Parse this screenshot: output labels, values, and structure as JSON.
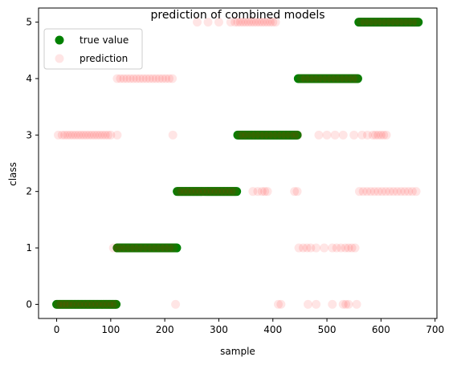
{
  "chart_data": {
    "type": "scatter",
    "title": "prediction of combined models",
    "xlabel": "sample",
    "ylabel": "class",
    "xlim": [
      -33.5,
      703.5
    ],
    "ylim": [
      -0.25,
      5.25
    ],
    "xticks": [
      0,
      100,
      200,
      300,
      400,
      500,
      600,
      700
    ],
    "yticks": [
      0,
      1,
      2,
      3,
      4,
      5
    ],
    "legend": {
      "position": "top-left"
    },
    "colors": {
      "true_value": "#008000",
      "prediction": "#ff0000"
    },
    "series": [
      {
        "name": "true value",
        "marker": "filled-circle",
        "segments": [
          {
            "class": 0,
            "x_start": 0,
            "x_end": 111
          },
          {
            "class": 1,
            "x_start": 112,
            "x_end": 222
          },
          {
            "class": 2,
            "x_start": 223,
            "x_end": 334
          },
          {
            "class": 3,
            "x_start": 335,
            "x_end": 446
          },
          {
            "class": 4,
            "x_start": 447,
            "x_end": 558
          },
          {
            "class": 5,
            "x_start": 559,
            "x_end": 670
          }
        ]
      },
      {
        "name": "prediction",
        "marker": "translucent-circle",
        "alpha": 0.1,
        "points": [
          [
            2,
            0
          ],
          [
            8,
            0
          ],
          [
            14,
            0
          ],
          [
            20,
            0
          ],
          [
            26,
            0
          ],
          [
            33,
            0
          ],
          [
            40,
            0
          ],
          [
            47,
            0
          ],
          [
            54,
            0
          ],
          [
            61,
            0
          ],
          [
            68,
            0
          ],
          [
            75,
            0
          ],
          [
            82,
            0
          ],
          [
            89,
            0
          ],
          [
            96,
            0
          ],
          [
            103,
            0
          ],
          [
            109,
            0
          ],
          [
            3,
            3
          ],
          [
            10,
            3
          ],
          [
            15,
            3
          ],
          [
            20,
            3
          ],
          [
            25,
            3
          ],
          [
            30,
            3
          ],
          [
            35,
            3
          ],
          [
            40,
            3
          ],
          [
            45,
            3
          ],
          [
            50,
            3
          ],
          [
            55,
            3
          ],
          [
            60,
            3
          ],
          [
            65,
            3
          ],
          [
            70,
            3
          ],
          [
            75,
            3
          ],
          [
            80,
            3
          ],
          [
            85,
            3
          ],
          [
            90,
            3
          ],
          [
            95,
            3
          ],
          [
            100,
            3
          ],
          [
            112,
            3
          ],
          [
            105,
            1
          ],
          [
            113,
            1
          ],
          [
            120,
            1
          ],
          [
            128,
            1
          ],
          [
            136,
            1
          ],
          [
            144,
            1
          ],
          [
            152,
            1
          ],
          [
            160,
            1
          ],
          [
            168,
            1
          ],
          [
            176,
            1
          ],
          [
            184,
            1
          ],
          [
            192,
            1
          ],
          [
            200,
            1
          ],
          [
            208,
            1
          ],
          [
            216,
            1
          ],
          [
            112,
            4
          ],
          [
            118,
            4
          ],
          [
            124,
            4
          ],
          [
            130,
            4
          ],
          [
            136,
            4
          ],
          [
            142,
            4
          ],
          [
            148,
            4
          ],
          [
            154,
            4
          ],
          [
            160,
            4
          ],
          [
            166,
            4
          ],
          [
            172,
            4
          ],
          [
            178,
            4
          ],
          [
            184,
            4
          ],
          [
            190,
            4
          ],
          [
            196,
            4
          ],
          [
            202,
            4
          ],
          [
            208,
            4
          ],
          [
            214,
            4
          ],
          [
            215,
            3
          ],
          [
            220,
            0
          ],
          [
            225,
            2
          ],
          [
            232,
            2
          ],
          [
            239,
            2
          ],
          [
            246,
            2
          ],
          [
            253,
            2
          ],
          [
            260,
            2
          ],
          [
            267,
            2
          ],
          [
            274,
            2
          ],
          [
            281,
            2
          ],
          [
            288,
            2
          ],
          [
            295,
            2
          ],
          [
            302,
            2
          ],
          [
            309,
            2
          ],
          [
            316,
            2
          ],
          [
            323,
            2
          ],
          [
            330,
            2
          ],
          [
            260,
            5
          ],
          [
            280,
            5
          ],
          [
            300,
            5
          ],
          [
            322,
            5
          ],
          [
            330,
            5
          ],
          [
            335,
            5
          ],
          [
            340,
            5
          ],
          [
            345,
            5
          ],
          [
            350,
            5
          ],
          [
            355,
            5
          ],
          [
            360,
            5
          ],
          [
            365,
            5
          ],
          [
            370,
            5
          ],
          [
            375,
            5
          ],
          [
            380,
            5
          ],
          [
            385,
            5
          ],
          [
            390,
            5
          ],
          [
            395,
            5
          ],
          [
            400,
            5
          ],
          [
            405,
            5
          ],
          [
            338,
            3
          ],
          [
            345,
            3
          ],
          [
            352,
            3
          ],
          [
            360,
            3
          ],
          [
            368,
            3
          ],
          [
            376,
            3
          ],
          [
            384,
            3
          ],
          [
            392,
            3
          ],
          [
            400,
            3
          ],
          [
            408,
            3
          ],
          [
            416,
            3
          ],
          [
            424,
            3
          ],
          [
            432,
            3
          ],
          [
            440,
            3
          ],
          [
            446,
            3
          ],
          [
            363,
            2
          ],
          [
            372,
            2
          ],
          [
            380,
            2
          ],
          [
            385,
            2
          ],
          [
            390,
            2
          ],
          [
            440,
            2
          ],
          [
            445,
            2
          ],
          [
            410,
            0
          ],
          [
            415,
            0
          ],
          [
            465,
            0
          ],
          [
            480,
            0
          ],
          [
            510,
            0
          ],
          [
            530,
            0
          ],
          [
            535,
            0
          ],
          [
            540,
            0
          ],
          [
            555,
            0
          ],
          [
            448,
            1
          ],
          [
            456,
            1
          ],
          [
            463,
            1
          ],
          [
            470,
            1
          ],
          [
            480,
            1
          ],
          [
            495,
            1
          ],
          [
            510,
            1
          ],
          [
            518,
            1
          ],
          [
            526,
            1
          ],
          [
            534,
            1
          ],
          [
            540,
            1
          ],
          [
            546,
            1
          ],
          [
            552,
            1
          ],
          [
            452,
            4
          ],
          [
            460,
            4
          ],
          [
            468,
            4
          ],
          [
            476,
            4
          ],
          [
            484,
            4
          ],
          [
            492,
            4
          ],
          [
            500,
            4
          ],
          [
            508,
            4
          ],
          [
            516,
            4
          ],
          [
            524,
            4
          ],
          [
            532,
            4
          ],
          [
            540,
            4
          ],
          [
            548,
            4
          ],
          [
            555,
            4
          ],
          [
            485,
            3
          ],
          [
            500,
            3
          ],
          [
            515,
            3
          ],
          [
            530,
            3
          ],
          [
            550,
            3
          ],
          [
            565,
            3
          ],
          [
            575,
            3
          ],
          [
            585,
            3
          ],
          [
            590,
            3
          ],
          [
            595,
            3
          ],
          [
            600,
            3
          ],
          [
            605,
            3
          ],
          [
            610,
            3
          ],
          [
            560,
            2
          ],
          [
            567,
            2
          ],
          [
            574,
            2
          ],
          [
            581,
            2
          ],
          [
            588,
            2
          ],
          [
            595,
            2
          ],
          [
            602,
            2
          ],
          [
            609,
            2
          ],
          [
            616,
            2
          ],
          [
            623,
            2
          ],
          [
            630,
            2
          ],
          [
            637,
            2
          ],
          [
            644,
            2
          ],
          [
            651,
            2
          ],
          [
            658,
            2
          ],
          [
            665,
            2
          ],
          [
            562,
            5
          ],
          [
            570,
            5
          ],
          [
            578,
            5
          ],
          [
            586,
            5
          ],
          [
            594,
            5
          ],
          [
            602,
            5
          ],
          [
            610,
            5
          ],
          [
            618,
            5
          ],
          [
            626,
            5
          ],
          [
            634,
            5
          ],
          [
            642,
            5
          ],
          [
            650,
            5
          ],
          [
            658,
            5
          ],
          [
            666,
            5
          ]
        ]
      }
    ]
  }
}
